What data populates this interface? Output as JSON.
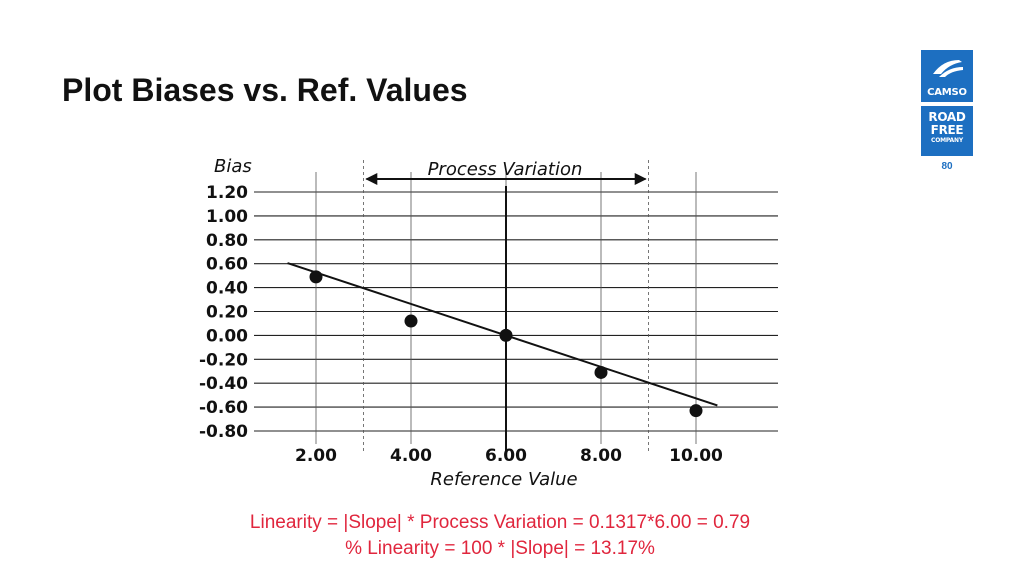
{
  "slide": {
    "title": "Plot Biases vs. Ref. Values",
    "page_number": "80"
  },
  "logos": {
    "camso": "CAMSO",
    "road_line1": "ROAD",
    "road_line2": "FREE",
    "road_line3": "COMPANY",
    "brand_color": "#1d6fc1"
  },
  "chart_data": {
    "type": "scatter",
    "ylabel": "Bias",
    "xlabel": "Reference Value",
    "annotation": "Process Variation",
    "x_ticks": [
      "2.00",
      "4.00",
      "6.00",
      "8.00",
      "10.00"
    ],
    "y_ticks": [
      "1.20",
      "1.00",
      "0.80",
      "0.60",
      "0.40",
      "0.20",
      "0.00",
      "-0.20",
      "-0.40",
      "-0.60",
      "-0.80"
    ],
    "xlim": [
      0.5,
      12
    ],
    "ylim": [
      -0.8,
      1.2
    ],
    "grid": true,
    "points": [
      {
        "x": 2.0,
        "y": 0.49
      },
      {
        "x": 4.0,
        "y": 0.12
      },
      {
        "x": 6.0,
        "y": 0.0
      },
      {
        "x": 8.0,
        "y": -0.31
      },
      {
        "x": 10.0,
        "y": -0.63
      }
    ],
    "fit_line": {
      "slope": -0.1317,
      "intercept": 0.79,
      "x_range": [
        1.4,
        10.45
      ]
    },
    "process_variation_range": [
      3.0,
      9.0
    ],
    "reference_line_x": 6.0
  },
  "formulas": {
    "linearity": "Linearity = |Slope| * Process Variation = 0.1317*6.00 = 0.79",
    "percent_linearity": "% Linearity = 100 * |Slope| = 13.17%",
    "color": "#e0263d"
  }
}
